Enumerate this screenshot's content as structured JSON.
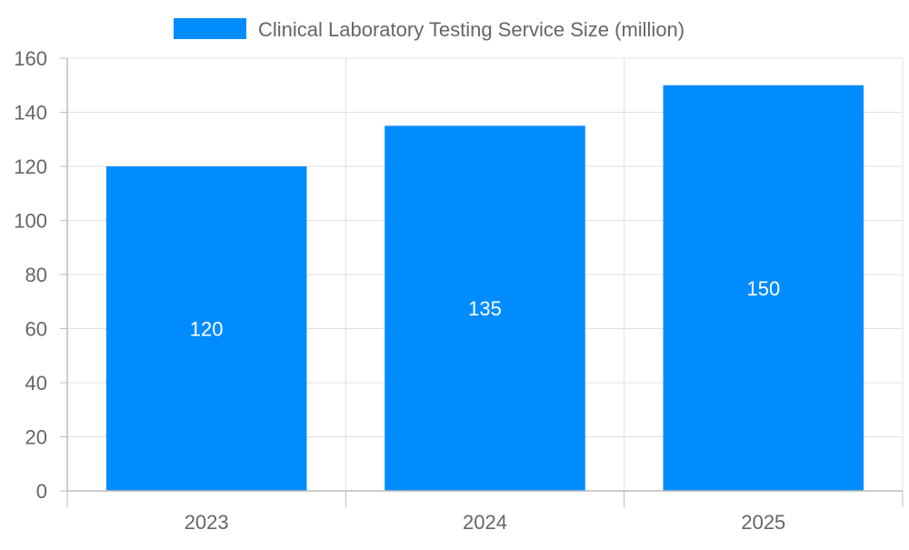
{
  "chart_data": {
    "type": "bar",
    "categories": [
      "2023",
      "2024",
      "2025"
    ],
    "series": [
      {
        "name": "Clinical Laboratory Testing Service Size (million)",
        "values": [
          120,
          135,
          150
        ],
        "color": "#008cff"
      }
    ],
    "ylim": [
      0,
      160
    ],
    "yticks": [
      0,
      20,
      40,
      60,
      80,
      100,
      120,
      140,
      160
    ],
    "grid": true,
    "legend_position": "top",
    "data_labels": true
  }
}
